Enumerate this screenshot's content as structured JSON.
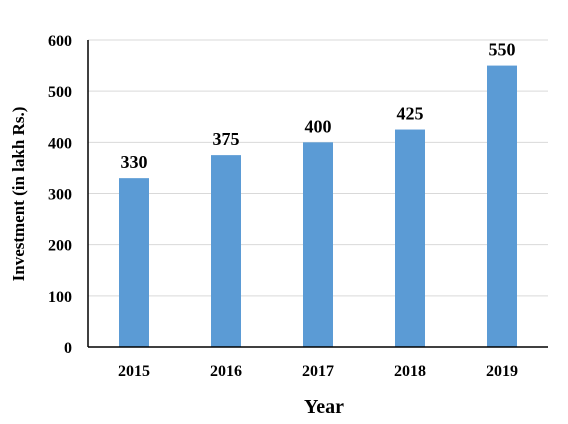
{
  "chart_data": {
    "type": "bar",
    "title": "",
    "xlabel": "Year",
    "ylabel": "Investment (in lakh Rs.)",
    "categories": [
      "2015",
      "2016",
      "2017",
      "2018",
      "2019"
    ],
    "values": [
      330,
      375,
      400,
      425,
      550
    ],
    "ylim": [
      0,
      600
    ],
    "yticks": [
      0,
      100,
      200,
      300,
      400,
      500,
      600
    ],
    "grid": true,
    "legend": "none",
    "bar_color": "#5B9BD5"
  }
}
